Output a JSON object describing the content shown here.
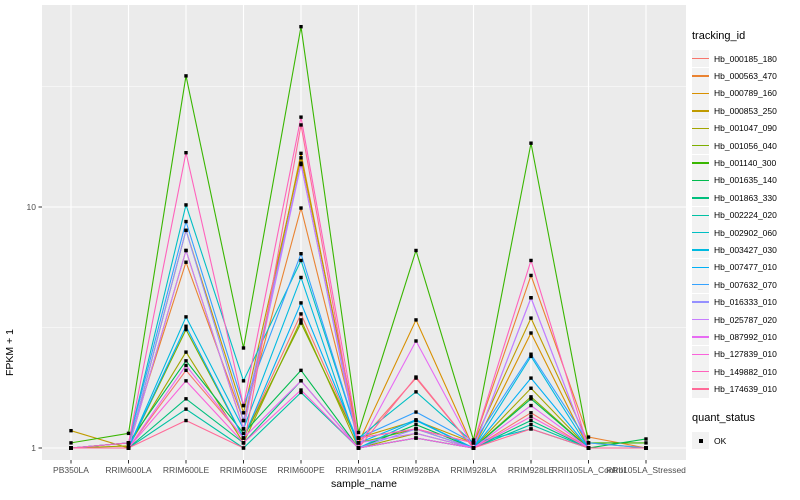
{
  "figure": {
    "legend": {
      "tracking_title": "tracking_id",
      "quant_title": "quant_status",
      "quant_items": [
        {
          "label": "OK",
          "shape": "filled-square",
          "color": "#000000"
        }
      ]
    },
    "style": {
      "panel_background": "#EBEBEB",
      "grid_color": "#FFFFFF",
      "axis_text_color": "#4D4D4D",
      "axis_title_color": "#000000",
      "legend_key_background": "#F2F2F2",
      "point_color": "#000000"
    }
  },
  "chart_data": {
    "type": "line",
    "title": "",
    "xlabel": "sample_name",
    "ylabel": "FPKM + 1",
    "y_scale": "log10",
    "ylim": [
      0.87,
      69
    ],
    "y_major_ticks": [
      1,
      10
    ],
    "y_tick_labels": [
      "1",
      "10"
    ],
    "y_minor_gridlines": [
      3.162,
      31.62
    ],
    "grid": true,
    "legend_position": "right",
    "point_shape": "filled-square",
    "categories": [
      "PB350LA",
      "RRIM600LA",
      "RRIM600LE",
      "RRIM600SE",
      "RRIM600PE",
      "RRIM901LA",
      "RRIM928BA",
      "RRIM928LA",
      "RRIM928LE",
      "RRII105LA_Control",
      "RRII105LA_Stressed"
    ],
    "series": [
      {
        "name": "Hb_000185_180",
        "color": "#F8766D",
        "values": [
          1.0,
          1.0,
          2.1,
          1.1,
          3.6,
          1.05,
          1.95,
          1.0,
          1.4,
          1.0,
          1.0
        ]
      },
      {
        "name": "Hb_000563_470",
        "color": "#EA8331",
        "values": [
          1.0,
          1.05,
          5.9,
          1.3,
          9.9,
          1.1,
          1.2,
          1.05,
          5.2,
          1.11,
          1.0
        ]
      },
      {
        "name": "Hb_000789_160",
        "color": "#D89000",
        "values": [
          1.0,
          1.0,
          6.6,
          1.2,
          16.7,
          1.05,
          3.4,
          1.0,
          3.0,
          1.0,
          1.0
        ]
      },
      {
        "name": "Hb_000853_250",
        "color": "#C09B00",
        "values": [
          1.18,
          1.0,
          8.0,
          1.4,
          16.0,
          1.1,
          1.3,
          1.05,
          3.46,
          1.05,
          1.0
        ]
      },
      {
        "name": "Hb_001047_090",
        "color": "#A3A500",
        "values": [
          1.0,
          1.02,
          2.5,
          1.05,
          3.4,
          1.0,
          1.15,
          1.0,
          1.77,
          1.0,
          1.0
        ]
      },
      {
        "name": "Hb_001056_040",
        "color": "#7CAE00",
        "values": [
          1.0,
          1.0,
          3.1,
          1.1,
          3.3,
          1.05,
          1.2,
          1.0,
          1.63,
          1.0,
          1.0
        ]
      },
      {
        "name": "Hb_001140_300",
        "color": "#39B600",
        "values": [
          1.05,
          1.15,
          35.0,
          2.6,
          56.0,
          1.16,
          6.6,
          1.08,
          18.4,
          1.05,
          1.05
        ]
      },
      {
        "name": "Hb_001635_140",
        "color": "#00BB4E",
        "values": [
          1.0,
          1.05,
          2.3,
          1.15,
          2.1,
          1.0,
          1.25,
          1.0,
          1.6,
          1.0,
          1.09
        ]
      },
      {
        "name": "Hb_001863_330",
        "color": "#00BF7D",
        "values": [
          1.0,
          1.0,
          1.6,
          1.05,
          1.9,
          1.0,
          1.1,
          1.0,
          1.3,
          1.0,
          1.0
        ]
      },
      {
        "name": "Hb_002224_020",
        "color": "#00C1A3",
        "values": [
          1.0,
          1.0,
          1.45,
          1.0,
          1.7,
          1.0,
          1.1,
          1.0,
          1.25,
          1.0,
          1.0
        ]
      },
      {
        "name": "Hb_002902_060",
        "color": "#00BFC4",
        "values": [
          1.0,
          1.05,
          10.2,
          1.9,
          6.0,
          1.1,
          1.71,
          1.05,
          1.2,
          1.0,
          1.0
        ]
      },
      {
        "name": "Hb_003427_030",
        "color": "#00BAE0",
        "values": [
          1.0,
          1.0,
          3.5,
          1.2,
          5.1,
          1.0,
          1.3,
          1.0,
          2.4,
          1.0,
          1.0
        ]
      },
      {
        "name": "Hb_007477_010",
        "color": "#00B0F6",
        "values": [
          1.0,
          1.0,
          3.2,
          1.1,
          4.0,
          1.05,
          1.31,
          1.0,
          1.95,
          1.0,
          1.0
        ]
      },
      {
        "name": "Hb_007632_070",
        "color": "#35A2FF",
        "values": [
          1.0,
          1.05,
          8.7,
          1.5,
          6.4,
          1.1,
          1.41,
          1.05,
          2.45,
          1.05,
          1.0
        ]
      },
      {
        "name": "Hb_016333_010",
        "color": "#9590FF",
        "values": [
          1.0,
          1.0,
          8.0,
          1.3,
          15.2,
          1.0,
          1.2,
          1.0,
          4.2,
          1.0,
          1.0
        ]
      },
      {
        "name": "Hb_025787_020",
        "color": "#C77CFF",
        "values": [
          1.0,
          1.0,
          6.6,
          1.2,
          15.0,
          1.05,
          1.15,
          1.0,
          4.2,
          1.0,
          1.0
        ]
      },
      {
        "name": "Hb_087992_010",
        "color": "#E76BF3",
        "values": [
          1.0,
          1.0,
          2.2,
          1.1,
          1.9,
          1.0,
          2.78,
          1.0,
          1.5,
          1.0,
          1.0
        ]
      },
      {
        "name": "Hb_127839_010",
        "color": "#FA62DB",
        "values": [
          1.0,
          1.0,
          1.9,
          1.05,
          1.74,
          1.0,
          1.1,
          1.0,
          1.35,
          1.0,
          1.0
        ]
      },
      {
        "name": "Hb_149882_010",
        "color": "#FF62BC",
        "values": [
          1.0,
          1.05,
          16.8,
          1.5,
          23.6,
          1.1,
          1.2,
          1.05,
          6.0,
          1.0,
          1.0
        ]
      },
      {
        "name": "Hb_174639_010",
        "color": "#FF6A98",
        "values": [
          1.0,
          1.0,
          1.3,
          1.0,
          21.9,
          1.0,
          1.97,
          1.0,
          1.2,
          1.0,
          1.0
        ]
      }
    ]
  }
}
